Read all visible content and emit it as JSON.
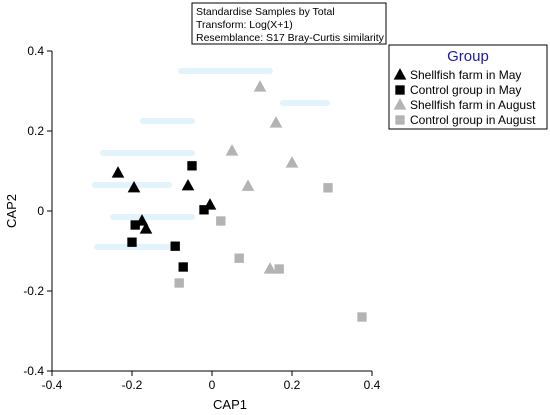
{
  "chart_data": {
    "type": "scatter",
    "xlabel": "CAP1",
    "ylabel": "CAP2",
    "xlim": [
      -0.4,
      0.4
    ],
    "ylim": [
      -0.4,
      0.4
    ],
    "xticks": [
      "-0.4",
      "-0.2",
      "0",
      "0.2",
      "0.4"
    ],
    "yticks": [
      "-0.4",
      "-0.2",
      "0",
      "0.2",
      "0.4"
    ],
    "grid": false,
    "annotation_lines": [
      "Standardise Samples by Total",
      "Transform: Log(X+1)",
      "Resemblance: S17 Bray-Curtis similarity"
    ],
    "legend": {
      "title": "Group",
      "position": "top-right"
    },
    "series": [
      {
        "name": "Shellfish farm in May",
        "marker": "triangle",
        "color": "#000000",
        "points": [
          [
            -0.235,
            0.095
          ],
          [
            -0.195,
            0.058
          ],
          [
            -0.06,
            0.063
          ],
          [
            -0.175,
            -0.025
          ],
          [
            -0.165,
            -0.045
          ],
          [
            -0.005,
            0.015
          ]
        ]
      },
      {
        "name": "Control group in May",
        "marker": "square",
        "color": "#000000",
        "points": [
          [
            -0.05,
            0.113
          ],
          [
            -0.02,
            0.003
          ],
          [
            -0.192,
            -0.035
          ],
          [
            -0.2,
            -0.078
          ],
          [
            -0.092,
            -0.088
          ],
          [
            -0.072,
            -0.14
          ]
        ]
      },
      {
        "name": "Shellfish farm in August",
        "marker": "triangle",
        "color": "#b3b3b3",
        "points": [
          [
            0.12,
            0.31
          ],
          [
            0.16,
            0.22
          ],
          [
            0.05,
            0.15
          ],
          [
            0.2,
            0.12
          ],
          [
            0.09,
            0.062
          ],
          [
            0.145,
            -0.145
          ]
        ]
      },
      {
        "name": "Control group in August",
        "marker": "square",
        "color": "#b3b3b3",
        "points": [
          [
            0.29,
            0.058
          ],
          [
            0.022,
            -0.025
          ],
          [
            0.068,
            -0.118
          ],
          [
            0.168,
            -0.145
          ],
          [
            -0.082,
            -0.18
          ],
          [
            0.375,
            -0.265
          ]
        ]
      }
    ]
  }
}
